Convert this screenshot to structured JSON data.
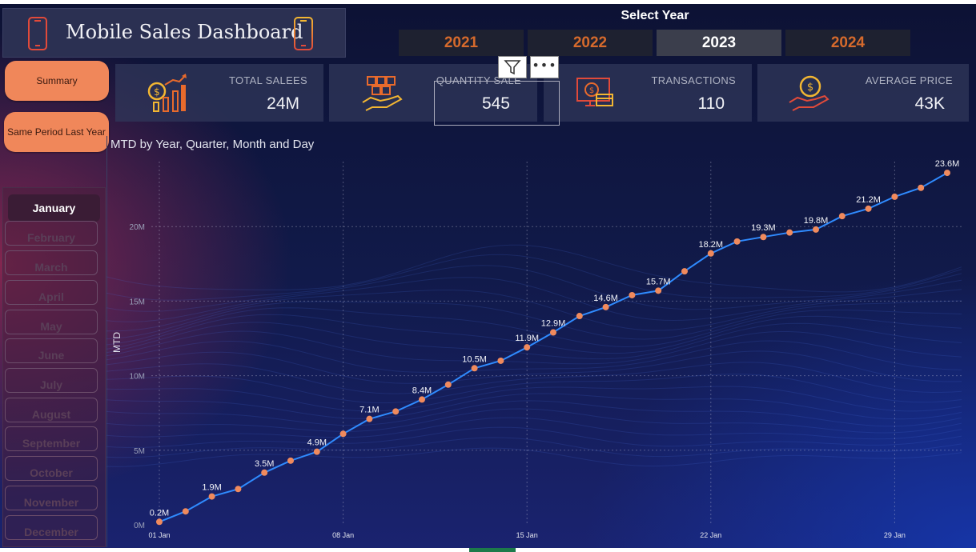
{
  "header": {
    "title": "Mobile Sales Dashboard",
    "select_year_label": "Select Year",
    "years": [
      "2021",
      "2022",
      "2023",
      "2024"
    ],
    "selected_year": "2023"
  },
  "nav": {
    "summary_label": "Summary",
    "same_period_label": "Same Period Last Year"
  },
  "kpis": [
    {
      "label": "TOTAL SALEES",
      "value": "24M",
      "icon": "money-growth-icon"
    },
    {
      "label": "QUANTITY SALE",
      "value": "545",
      "icon": "boxes-hand-icon"
    },
    {
      "label": "TRANSACTIONS",
      "value": "110",
      "icon": "payment-screen-icon"
    },
    {
      "label": "AVERAGE PRICE",
      "value": "43K",
      "icon": "coin-hand-icon"
    }
  ],
  "visual_header": {
    "filter_icon": "funnel-icon",
    "more_label": "•••"
  },
  "months": [
    "January",
    "February",
    "March",
    "April",
    "May",
    "June",
    "July",
    "August",
    "September",
    "October",
    "November",
    "December"
  ],
  "selected_month": "January",
  "colors": {
    "accent": "#f0875a",
    "line": "#2f8bff",
    "marker": "#f08a5d",
    "year_text": "#d66a2c"
  },
  "chart_data": {
    "type": "line",
    "title": "MTD by Year, Quarter, Month and Day",
    "ylabel": "MTD",
    "xlabel": "",
    "x": [
      "01 Jan",
      "02 Jan",
      "03 Jan",
      "04 Jan",
      "05 Jan",
      "06 Jan",
      "07 Jan",
      "08 Jan",
      "09 Jan",
      "10 Jan",
      "11 Jan",
      "12 Jan",
      "13 Jan",
      "14 Jan",
      "15 Jan",
      "16 Jan",
      "17 Jan",
      "18 Jan",
      "19 Jan",
      "20 Jan",
      "21 Jan",
      "22 Jan",
      "23 Jan",
      "24 Jan",
      "25 Jan",
      "26 Jan",
      "27 Jan",
      "28 Jan",
      "29 Jan",
      "30 Jan",
      "31 Jan"
    ],
    "x_ticks": [
      "01 Jan",
      "08 Jan",
      "15 Jan",
      "22 Jan",
      "29 Jan"
    ],
    "series": [
      {
        "values": [
          0.2,
          0.9,
          1.9,
          2.4,
          3.5,
          4.3,
          4.9,
          6.1,
          7.1,
          7.6,
          8.4,
          9.4,
          10.5,
          11.0,
          11.9,
          12.9,
          14.0,
          14.6,
          15.4,
          15.7,
          17.0,
          18.2,
          19.0,
          19.3,
          19.6,
          19.8,
          20.7,
          21.2,
          22.0,
          22.6,
          23.6
        ]
      }
    ],
    "data_labels": [
      {
        "x": "01 Jan",
        "text": "0.2M"
      },
      {
        "x": "03 Jan",
        "text": "1.9M"
      },
      {
        "x": "05 Jan",
        "text": "3.5M"
      },
      {
        "x": "07 Jan",
        "text": "4.9M"
      },
      {
        "x": "09 Jan",
        "text": "7.1M"
      },
      {
        "x": "11 Jan",
        "text": "8.4M"
      },
      {
        "x": "13 Jan",
        "text": "10.5M"
      },
      {
        "x": "15 Jan",
        "text": "11.9M"
      },
      {
        "x": "16 Jan",
        "text": "12.9M"
      },
      {
        "x": "18 Jan",
        "text": "14.6M"
      },
      {
        "x": "20 Jan",
        "text": "15.7M"
      },
      {
        "x": "22 Jan",
        "text": "18.2M"
      },
      {
        "x": "24 Jan",
        "text": "19.3M"
      },
      {
        "x": "26 Jan",
        "text": "19.8M"
      },
      {
        "x": "28 Jan",
        "text": "21.2M"
      },
      {
        "x": "31 Jan",
        "text": "23.6M"
      }
    ],
    "y_ticks": [
      {
        "v": 0,
        "label": "0M"
      },
      {
        "v": 5,
        "label": "5M"
      },
      {
        "v": 10,
        "label": "10M"
      },
      {
        "v": 15,
        "label": "15M"
      },
      {
        "v": 20,
        "label": "20M"
      }
    ],
    "ylim": [
      0,
      25
    ],
    "grid": true,
    "legend": "none"
  }
}
